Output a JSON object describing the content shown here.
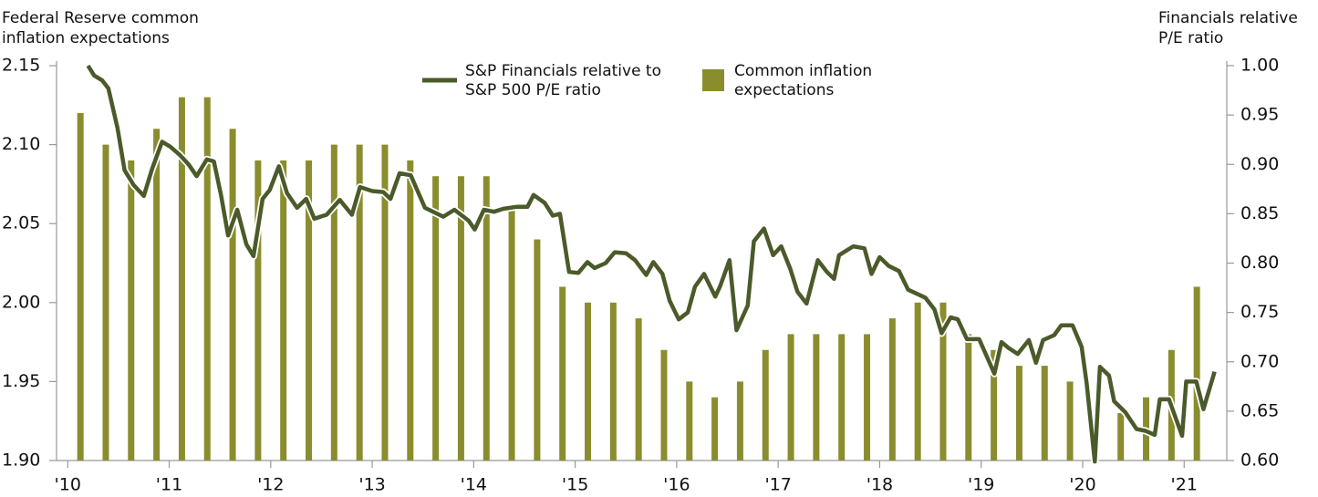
{
  "chart_data": {
    "type": "bar_line",
    "y_label": [
      "Federal Reserve common",
      "inflation expectations"
    ],
    "y2_label": [
      "Financials relative",
      "P/E ratio"
    ],
    "xlim": [
      2009.89,
      2021.42
    ],
    "xticks": [
      {
        "value": 2010,
        "label": "'10"
      },
      {
        "value": 2011,
        "label": "'11"
      },
      {
        "value": 2012,
        "label": "'12"
      },
      {
        "value": 2013,
        "label": "'13"
      },
      {
        "value": 2014,
        "label": "'14"
      },
      {
        "value": 2015,
        "label": "'15"
      },
      {
        "value": 2016,
        "label": "'16"
      },
      {
        "value": 2017,
        "label": "'17"
      },
      {
        "value": 2018,
        "label": "'18"
      },
      {
        "value": 2019,
        "label": "'19"
      },
      {
        "value": 2020,
        "label": "'20"
      },
      {
        "value": 2021,
        "label": "'21"
      }
    ],
    "ylim": [
      1.9,
      2.15
    ],
    "yticks": [
      {
        "value": 1.9,
        "label": "1.90"
      },
      1.95,
      {
        "value": 2.0,
        "label": "2.00"
      },
      2.05,
      {
        "value": 2.1,
        "label": "2.10"
      },
      2.15
    ],
    "y2lim": [
      0.6,
      1.0
    ],
    "y2ticks": [
      {
        "value": 0.6,
        "label": "0.60"
      },
      0.65,
      {
        "value": 0.7,
        "label": "0.70"
      },
      0.75,
      {
        "value": 0.8,
        "label": "0.80"
      },
      0.85,
      {
        "value": 0.9,
        "label": "0.90"
      },
      0.95,
      {
        "value": 1.0,
        "label": "1.00"
      }
    ],
    "grid": false,
    "series": [
      {
        "name": "Common inflation expectations",
        "type": "bar",
        "color": "#8a8d2e",
        "axis": "y",
        "x": [
          2010.125,
          2010.375,
          2010.625,
          2010.875,
          2011.125,
          2011.375,
          2011.625,
          2011.875,
          2012.125,
          2012.375,
          2012.625,
          2012.875,
          2013.125,
          2013.375,
          2013.625,
          2013.875,
          2014.125,
          2014.375,
          2014.625,
          2014.875,
          2015.125,
          2015.375,
          2015.625,
          2015.875,
          2016.125,
          2016.375,
          2016.625,
          2016.875,
          2017.125,
          2017.375,
          2017.625,
          2017.875,
          2018.125,
          2018.375,
          2018.625,
          2018.875,
          2019.125,
          2019.375,
          2019.625,
          2019.875,
          2020.375,
          2020.625,
          2020.875,
          2021.125
        ],
        "values": [
          2.12,
          2.1,
          2.09,
          2.11,
          2.13,
          2.13,
          2.11,
          2.09,
          2.09,
          2.09,
          2.1,
          2.1,
          2.1,
          2.09,
          2.08,
          2.08,
          2.08,
          2.06,
          2.04,
          2.01,
          2.0,
          2.0,
          1.99,
          1.97,
          1.95,
          1.94,
          1.95,
          1.97,
          1.98,
          1.98,
          1.98,
          1.98,
          1.99,
          2.0,
          2.0,
          1.98,
          1.97,
          1.96,
          1.96,
          1.95,
          1.93,
          1.94,
          1.97,
          2.01
        ]
      },
      {
        "name": "S&P Financials relative to S&P 500 P/E ratio",
        "type": "line",
        "color": "#4b5a2a",
        "axis": "y2",
        "x": [
          2010.2,
          2010.26,
          2010.34,
          2010.4,
          2010.49,
          2010.56,
          2010.65,
          2010.75,
          2010.83,
          2010.93,
          2011.01,
          2011.1,
          2011.19,
          2011.27,
          2011.37,
          2011.44,
          2011.51,
          2011.58,
          2011.67,
          2011.76,
          2011.83,
          2011.92,
          2011.99,
          2012.08,
          2012.16,
          2012.26,
          2012.35,
          2012.43,
          2012.55,
          2012.68,
          2012.8,
          2012.88,
          2013.0,
          2013.11,
          2013.18,
          2013.27,
          2013.38,
          2013.52,
          2013.7,
          2013.81,
          2013.95,
          2014.01,
          2014.1,
          2014.2,
          2014.29,
          2014.42,
          2014.53,
          2014.59,
          2014.7,
          2014.78,
          2014.85,
          2014.94,
          2015.03,
          2015.12,
          2015.19,
          2015.3,
          2015.39,
          2015.5,
          2015.59,
          2015.7,
          2015.77,
          2015.86,
          2015.93,
          2016.02,
          2016.11,
          2016.18,
          2016.27,
          2016.38,
          2016.43,
          2016.52,
          2016.59,
          2016.7,
          2016.76,
          2016.86,
          2016.95,
          2017.03,
          2017.12,
          2017.19,
          2017.28,
          2017.39,
          2017.48,
          2017.55,
          2017.6,
          2017.74,
          2017.85,
          2017.92,
          2018.0,
          2018.09,
          2018.19,
          2018.28,
          2018.45,
          2018.54,
          2018.61,
          2018.7,
          2018.77,
          2018.86,
          2018.98,
          2019.13,
          2019.2,
          2019.27,
          2019.36,
          2019.47,
          2019.54,
          2019.61,
          2019.72,
          2019.79,
          2019.9,
          2019.99,
          2020.04,
          2020.12,
          2020.17,
          2020.26,
          2020.31,
          2020.42,
          2020.53,
          2020.62,
          2020.71,
          2020.76,
          2020.85,
          2020.98,
          2021.02,
          2021.12,
          2021.19,
          2021.3
        ],
        "values": [
          1.0,
          0.99,
          0.985,
          0.977,
          0.937,
          0.894,
          0.879,
          0.868,
          0.895,
          0.923,
          0.918,
          0.91,
          0.9,
          0.888,
          0.905,
          0.903,
          0.869,
          0.828,
          0.854,
          0.819,
          0.807,
          0.865,
          0.874,
          0.898,
          0.871,
          0.856,
          0.865,
          0.845,
          0.849,
          0.864,
          0.849,
          0.877,
          0.873,
          0.872,
          0.865,
          0.891,
          0.889,
          0.856,
          0.847,
          0.854,
          0.843,
          0.834,
          0.854,
          0.852,
          0.855,
          0.857,
          0.857,
          0.869,
          0.861,
          0.848,
          0.85,
          0.791,
          0.79,
          0.801,
          0.795,
          0.8,
          0.811,
          0.81,
          0.803,
          0.788,
          0.801,
          0.789,
          0.762,
          0.743,
          0.75,
          0.776,
          0.789,
          0.766,
          0.777,
          0.803,
          0.732,
          0.757,
          0.822,
          0.835,
          0.808,
          0.817,
          0.794,
          0.771,
          0.759,
          0.803,
          0.791,
          0.784,
          0.808,
          0.817,
          0.815,
          0.789,
          0.806,
          0.797,
          0.792,
          0.773,
          0.765,
          0.753,
          0.729,
          0.745,
          0.743,
          0.723,
          0.723,
          0.688,
          0.72,
          0.714,
          0.708,
          0.722,
          0.699,
          0.722,
          0.727,
          0.737,
          0.737,
          0.715,
          0.678,
          0.599,
          0.695,
          0.686,
          0.66,
          0.649,
          0.632,
          0.63,
          0.626,
          0.662,
          0.662,
          0.625,
          0.68,
          0.68,
          0.652,
          0.69
        ]
      }
    ]
  }
}
